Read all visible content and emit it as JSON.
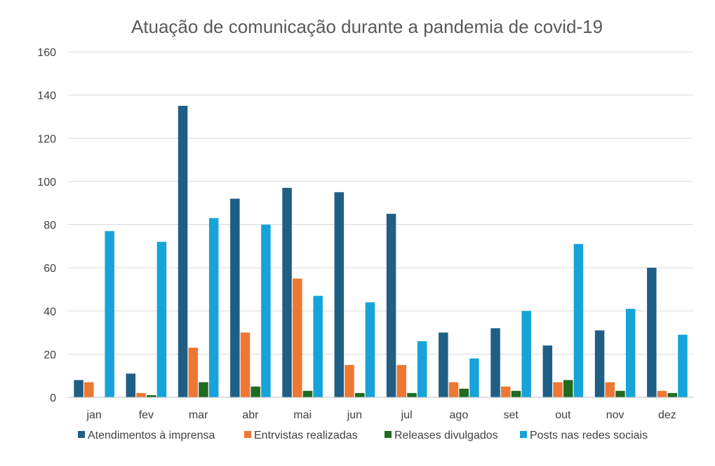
{
  "chart_data": {
    "type": "bar",
    "title": "Atuação de comunicação durante a pandemia de covid-19",
    "xlabel": "",
    "ylabel": "",
    "categories": [
      "jan",
      "fev",
      "mar",
      "abr",
      "mai",
      "jun",
      "jul",
      "ago",
      "set",
      "out",
      "nov",
      "dez"
    ],
    "ylim": [
      0,
      160
    ],
    "yticks": [
      0,
      20,
      40,
      60,
      80,
      100,
      120,
      140,
      160
    ],
    "grid": true,
    "legend_position": "bottom",
    "series": [
      {
        "name": "Atendimentos à imprensa",
        "color": "#1f5f85",
        "values": [
          8,
          11,
          135,
          92,
          97,
          95,
          85,
          30,
          32,
          24,
          31,
          60
        ]
      },
      {
        "name": "Entrvistas realizadas",
        "color": "#ee7733",
        "values": [
          7,
          2,
          23,
          30,
          55,
          15,
          15,
          7,
          5,
          7,
          7,
          3
        ]
      },
      {
        "name": "Releases divulgados",
        "color": "#1e6b22",
        "values": [
          0,
          1,
          7,
          5,
          3,
          2,
          2,
          4,
          3,
          8,
          3,
          2
        ]
      },
      {
        "name": "Posts nas redes sociais",
        "color": "#16a3d9",
        "values": [
          77,
          72,
          83,
          80,
          47,
          44,
          26,
          18,
          40,
          71,
          41,
          29
        ]
      }
    ]
  }
}
